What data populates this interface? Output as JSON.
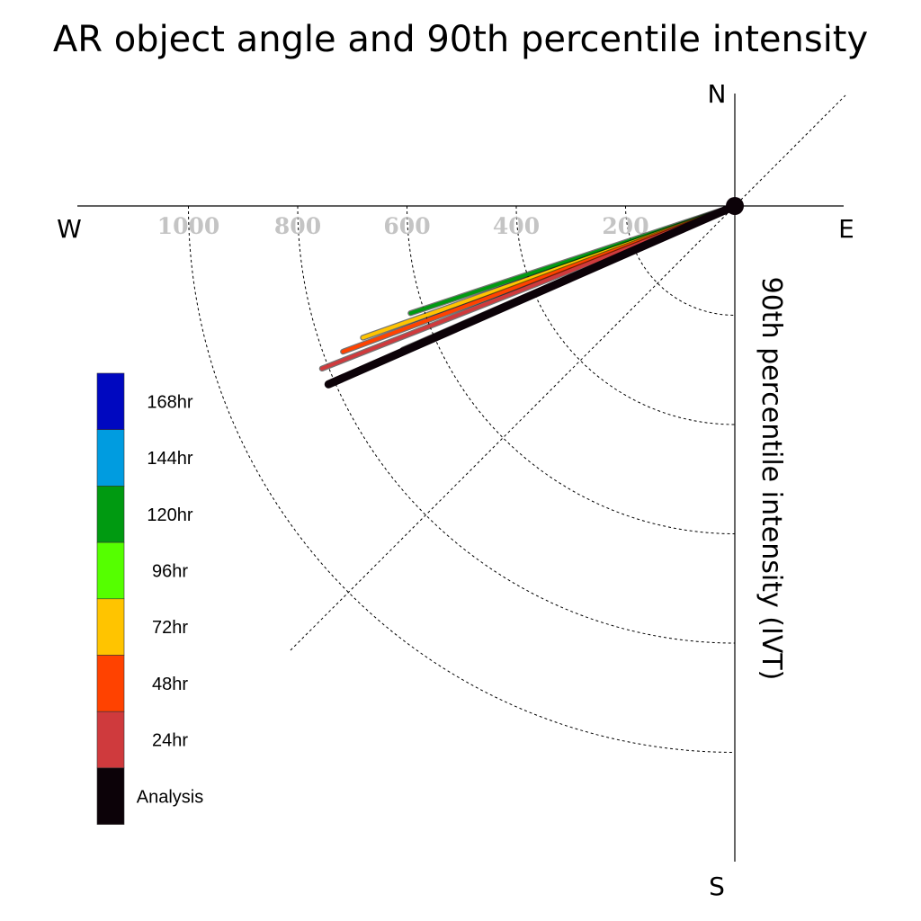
{
  "chart_data": {
    "type": "polar-line",
    "title": "AR object angle and 90th percentile intensity",
    "ylabel": "90th percentile intensity (IVT)",
    "directions": {
      "north": "N",
      "south": "S",
      "east": "E",
      "west": "W"
    },
    "radial_ticks": [
      "200",
      "400",
      "600",
      "800",
      "1000"
    ],
    "radial_tick_values": [
      200,
      400,
      600,
      800,
      1000
    ],
    "radial_max": 1150,
    "series": [
      {
        "name": "120hr",
        "color": "#009a11",
        "angle_deg_below_west": 18.3,
        "intensity": 625
      },
      {
        "name": "72hr",
        "color": "#ffc400",
        "angle_deg_below_west": 19.5,
        "intensity": 722
      },
      {
        "name": "48hr",
        "color": "#ff4200",
        "angle_deg_below_west": 20.4,
        "intensity": 765
      },
      {
        "name": "24hr",
        "color": "#cf3a3d",
        "angle_deg_below_west": 21.5,
        "intensity": 812
      },
      {
        "name": "96hr",
        "color": "#55ff00",
        "angle_deg_below_west": 23.4,
        "intensity": 662
      },
      {
        "name": "Analysis",
        "color": "#0c0208",
        "angle_deg_below_west": 23.7,
        "intensity": 812
      }
    ],
    "legend": [
      {
        "label": "168hr",
        "color": "#0008c0"
      },
      {
        "label": "144hr",
        "color": "#009ce0"
      },
      {
        "label": "120hr",
        "color": "#009a11"
      },
      {
        "label": "96hr",
        "color": "#55ff00"
      },
      {
        "label": "72hr",
        "color": "#ffc400"
      },
      {
        "label": "48hr",
        "color": "#ff4200"
      },
      {
        "label": "24hr",
        "color": "#cf3a3d"
      },
      {
        "label": "Analysis",
        "color": "#0c0208"
      }
    ]
  }
}
